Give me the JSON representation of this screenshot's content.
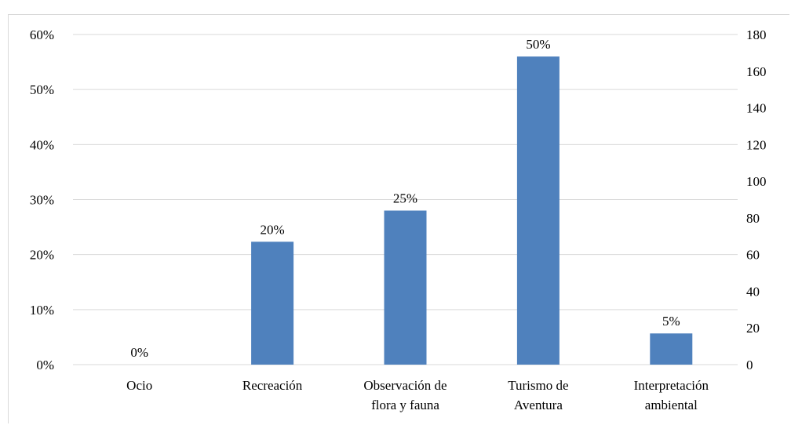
{
  "chart_data": {
    "type": "bar",
    "title": "",
    "xlabel": "",
    "ylabel": "",
    "categories": [
      [
        "Ocio"
      ],
      [
        "Recreación"
      ],
      [
        "Observación de",
        "flora y fauna"
      ],
      [
        "Turismo de",
        "Aventura"
      ],
      [
        "Interpretación",
        "ambiental"
      ]
    ],
    "series": [
      {
        "values": [
          0,
          67,
          84,
          168,
          17
        ],
        "data_labels": [
          "0%",
          "20%",
          "25%",
          "50%",
          "5%"
        ],
        "color": "#4f81bd"
      }
    ],
    "y_left": {
      "ylim": [
        0,
        0.6
      ],
      "ticks": [
        0,
        0.1,
        0.2,
        0.3,
        0.4,
        0.5,
        0.6
      ],
      "tick_labels": [
        "0%",
        "10%",
        "20%",
        "30%",
        "40%",
        "50%",
        "60%"
      ]
    },
    "y_right": {
      "ylim": [
        0,
        180
      ],
      "ticks": [
        0,
        20,
        40,
        60,
        80,
        100,
        120,
        140,
        160,
        180
      ],
      "tick_labels": [
        "0",
        "20",
        "40",
        "60",
        "80",
        "100",
        "120",
        "140",
        "160",
        "180"
      ]
    },
    "grid": true,
    "gridline_color": "#d9d9d9"
  }
}
